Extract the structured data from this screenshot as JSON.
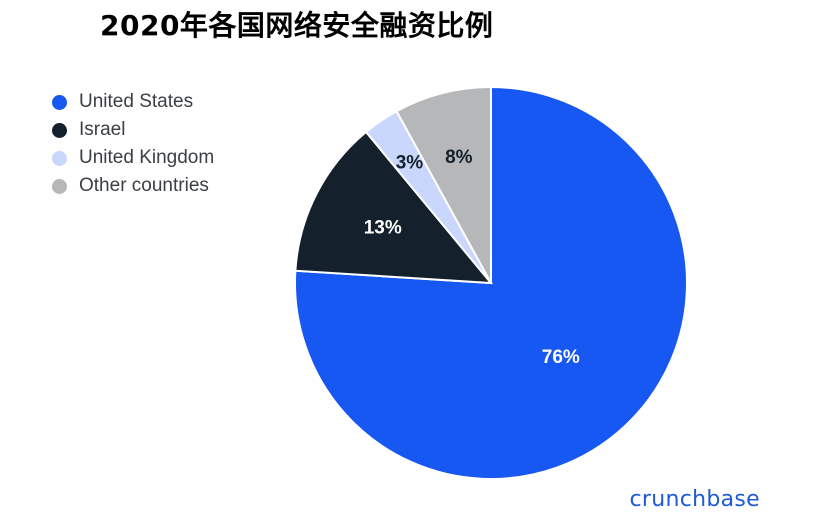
{
  "title": "2020年各国网络安全融资比例",
  "brand": "crunchbase",
  "chart_data": {
    "type": "pie",
    "title": "2020年各国网络安全融资比例",
    "categories": [
      "United States",
      "Israel",
      "United Kingdom",
      "Other countries"
    ],
    "values": [
      76,
      13,
      3,
      8
    ],
    "labels": [
      "76%",
      "13%",
      "3%",
      "8%"
    ],
    "colors": [
      "#1757f2",
      "#14202c",
      "#c8d7fb",
      "#b5b7b9"
    ],
    "label_colors": [
      "#ffffff",
      "#ffffff",
      "#14202c",
      "#14202c"
    ],
    "legend": "left",
    "start": "12 o'clock",
    "direction": "clockwise"
  }
}
